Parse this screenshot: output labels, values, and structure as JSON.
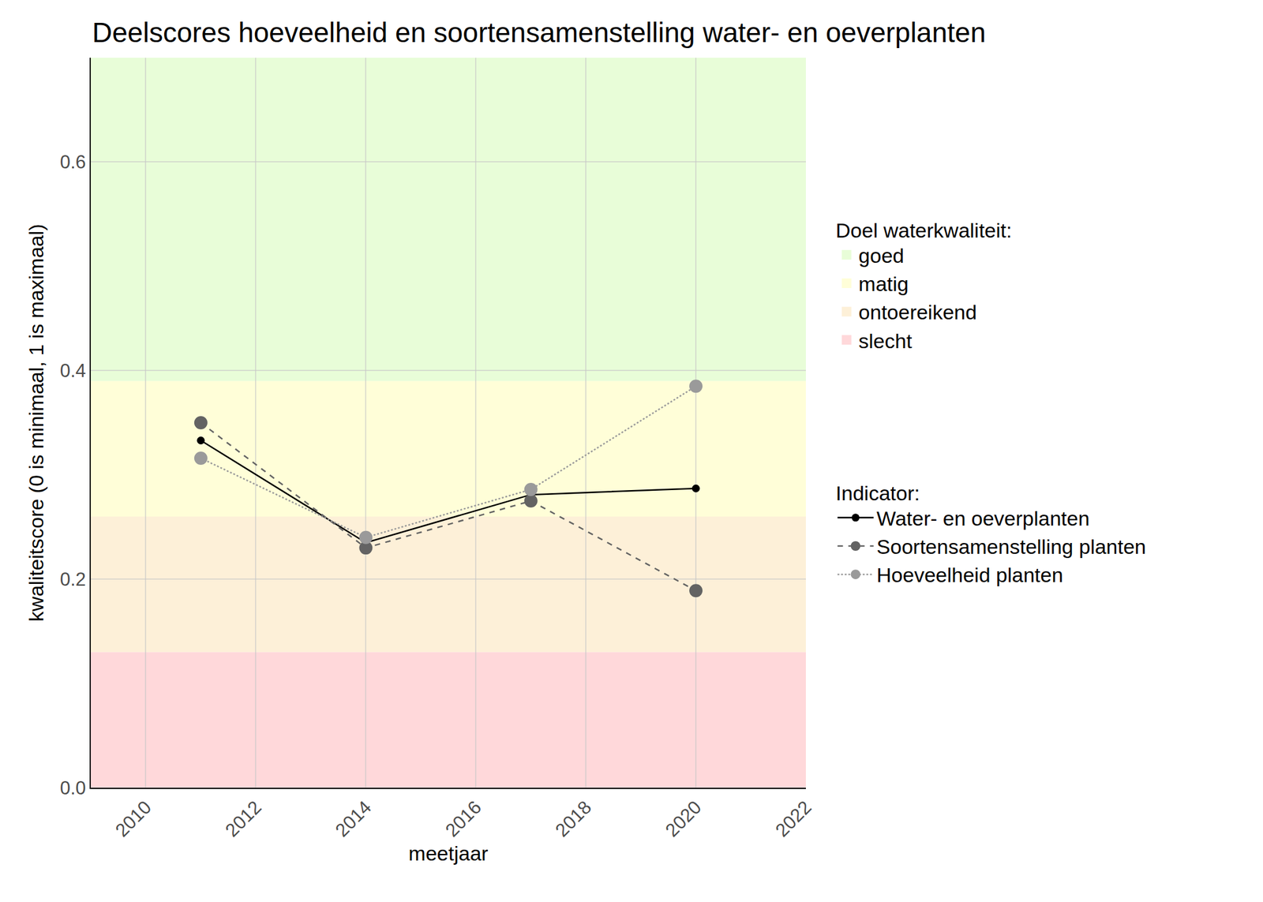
{
  "chart_data": {
    "type": "line",
    "title": "Deelscores hoeveelheid en soortensamenstelling water- en oeverplanten",
    "x_label": "meetjaar",
    "y_label": "kwaliteitscore (0 is minimaal, 1 is maximaal)",
    "x": [
      2011,
      2014,
      2017,
      2020
    ],
    "series": [
      {
        "name": "Water- en oeverplanten",
        "color": "#000000",
        "line_style": "solid",
        "marker": "circle",
        "values": [
          0.333,
          0.235,
          0.281,
          0.287
        ]
      },
      {
        "name": "Soortensamenstelling planten",
        "color": "#636363",
        "line_style": "dash",
        "marker": "circle",
        "values": [
          0.35,
          0.23,
          0.275,
          0.189
        ]
      },
      {
        "name": "Hoeveelheid planten",
        "color": "#9a9a9a",
        "line_style": "dot",
        "marker": "circle",
        "values": [
          0.316,
          0.24,
          0.286,
          0.385
        ]
      }
    ],
    "xlim": [
      2009,
      2022
    ],
    "xticks": [
      2010,
      2012,
      2014,
      2016,
      2018,
      2020,
      2022
    ],
    "ylim": [
      0,
      0.7
    ],
    "yticks": [
      {
        "value": 0,
        "label": "0.0"
      },
      0.2,
      0.4,
      0.6
    ],
    "grid": true,
    "legend": "right",
    "bands_title": "Doel waterkwaliteit:",
    "bands": [
      {
        "name": "goed",
        "from": 0.39,
        "to": 0.7,
        "color": "#e8fdd8"
      },
      {
        "name": "matig",
        "from": 0.26,
        "to": 0.39,
        "color": "#fffed8"
      },
      {
        "name": "ontoereikend",
        "from": 0.13,
        "to": 0.26,
        "color": "#fdf0d8"
      },
      {
        "name": "slecht",
        "from": 0,
        "to": 0.13,
        "color": "#ffd8da"
      }
    ],
    "legend_title": "Indicator:"
  }
}
